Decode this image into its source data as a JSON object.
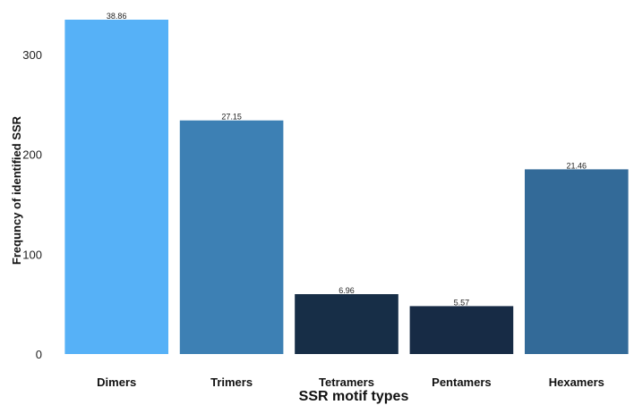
{
  "chart_data": {
    "type": "bar",
    "categories": [
      "Dimers",
      "Trimers",
      "Tetramers",
      "Pentamers",
      "Hexamers"
    ],
    "values": [
      335,
      234,
      60,
      48,
      185
    ],
    "data_labels": [
      "38.86",
      "27.15",
      "6.96",
      "5.57",
      "21.46"
    ],
    "bar_colors": [
      "#56b1f7",
      "#3d80b4",
      "#172e47",
      "#172b45",
      "#336a98"
    ],
    "xlabel": "SSR motif types",
    "ylabel": "Frequncy of identified SSR",
    "ylim": [
      0,
      340
    ],
    "yticks": [
      0,
      100,
      200,
      300
    ],
    "grid": false,
    "legend": "none"
  }
}
